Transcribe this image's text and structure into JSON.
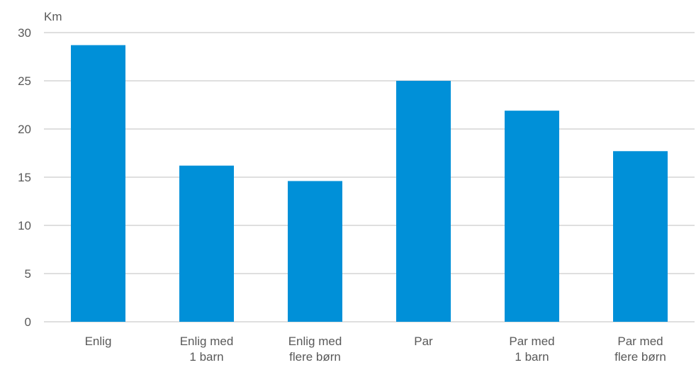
{
  "chart_data": {
    "type": "bar",
    "title": "",
    "xlabel": "",
    "ylabel": "Km",
    "ylim": [
      0,
      30
    ],
    "yticks": [
      0,
      5,
      10,
      15,
      20,
      25,
      30
    ],
    "grid": true,
    "categories": [
      [
        "Enlig"
      ],
      [
        "Enlig med",
        "1 barn"
      ],
      [
        "Enlig med",
        "flere børn"
      ],
      [
        "Par"
      ],
      [
        "Par med",
        "1 barn"
      ],
      [
        "Par med",
        "flere børn"
      ]
    ],
    "values": [
      28.7,
      16.2,
      14.6,
      25.0,
      21.9,
      17.7
    ],
    "bar_color": "#0090d8",
    "grid_color": "#bfbfbf",
    "text_color": "#595959"
  }
}
